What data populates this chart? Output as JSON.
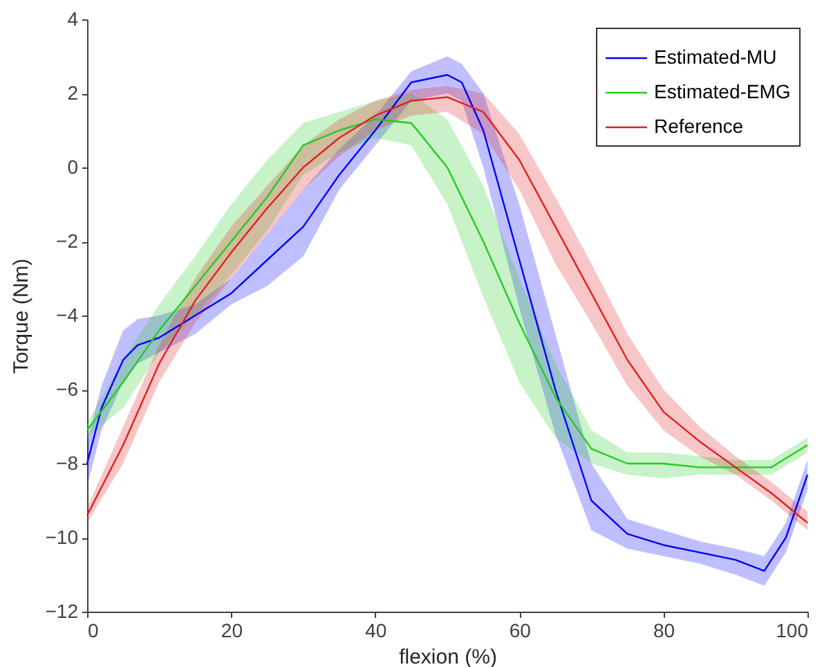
{
  "chart_data": {
    "type": "line",
    "xlabel": "flexion (%)",
    "ylabel": "Torque (Nm)",
    "xlim": [
      0,
      100
    ],
    "xticks": [
      0,
      20,
      40,
      60,
      80,
      100
    ],
    "ylim": [
      -12,
      4
    ],
    "yticks": [
      -12,
      -10,
      -8,
      -6,
      -4,
      -2,
      0,
      2,
      4
    ],
    "grid": false,
    "legend": "top right",
    "line_style": "solid",
    "series": [
      {
        "name": "Estimated-MU",
        "color": "#0000ff",
        "x": [
          0,
          2,
          5,
          7,
          10,
          15,
          20,
          25,
          30,
          35,
          40,
          45,
          50,
          52,
          55,
          60,
          65,
          70,
          75,
          80,
          85,
          90,
          94,
          97,
          100
        ],
        "values": [
          -8.0,
          -6.5,
          -5.2,
          -4.8,
          -4.6,
          -4.0,
          -3.4,
          -2.5,
          -1.6,
          -0.2,
          1.0,
          2.3,
          2.5,
          2.3,
          1.0,
          -2.5,
          -6.0,
          -9.0,
          -9.9,
          -10.2,
          -10.4,
          -10.6,
          -10.9,
          -10.0,
          -8.3
        ],
        "lower": [
          -8.6,
          -7.1,
          -5.8,
          -5.3,
          -5.0,
          -4.5,
          -3.7,
          -3.2,
          -2.4,
          -0.6,
          0.6,
          1.8,
          2.0,
          1.8,
          0.0,
          -3.8,
          -7.2,
          -9.8,
          -10.3,
          -10.5,
          -10.7,
          -11.0,
          -11.3,
          -10.4,
          -8.7
        ],
        "upper": [
          -7.4,
          -5.9,
          -4.4,
          -4.1,
          -4.0,
          -3.7,
          -3.0,
          -1.8,
          -0.6,
          0.5,
          1.4,
          2.6,
          3.0,
          2.8,
          2.0,
          -1.0,
          -4.5,
          -8.0,
          -9.5,
          -9.8,
          -10.1,
          -10.3,
          -10.5,
          -9.6,
          -7.9
        ]
      },
      {
        "name": "Estimated-EMG",
        "color": "#22cc22",
        "x": [
          0,
          5,
          10,
          15,
          20,
          25,
          30,
          35,
          40,
          45,
          50,
          55,
          60,
          65,
          70,
          75,
          80,
          85,
          90,
          95,
          100
        ],
        "values": [
          -7.1,
          -5.8,
          -4.4,
          -3.2,
          -2.0,
          -0.8,
          0.6,
          1.0,
          1.3,
          1.2,
          0.0,
          -2.0,
          -4.2,
          -6.2,
          -7.6,
          -8.0,
          -8.0,
          -8.1,
          -8.1,
          -8.1,
          -7.5
        ],
        "lower": [
          -7.3,
          -6.5,
          -5.0,
          -4.0,
          -2.9,
          -1.7,
          -0.2,
          0.4,
          0.8,
          0.6,
          -1.0,
          -3.5,
          -5.8,
          -7.3,
          -8.0,
          -8.3,
          -8.4,
          -8.3,
          -8.3,
          -8.3,
          -7.7
        ],
        "upper": [
          -6.9,
          -5.2,
          -3.7,
          -2.4,
          -1.0,
          0.2,
          1.2,
          1.5,
          1.8,
          2.0,
          1.3,
          -0.5,
          -3.0,
          -5.3,
          -7.1,
          -7.7,
          -7.7,
          -7.8,
          -7.9,
          -7.9,
          -7.3
        ]
      },
      {
        "name": "Reference",
        "color": "#e02020",
        "x": [
          0,
          5,
          10,
          15,
          20,
          25,
          30,
          35,
          40,
          45,
          50,
          55,
          60,
          65,
          70,
          75,
          80,
          85,
          90,
          95,
          100
        ],
        "values": [
          -9.4,
          -7.5,
          -5.3,
          -3.6,
          -2.3,
          -1.1,
          0.0,
          0.8,
          1.4,
          1.8,
          1.9,
          1.5,
          0.2,
          -1.6,
          -3.4,
          -5.2,
          -6.6,
          -7.4,
          -8.1,
          -8.8,
          -9.6
        ],
        "lower": [
          -9.6,
          -8.0,
          -5.8,
          -4.2,
          -3.0,
          -1.8,
          -0.6,
          0.3,
          1.0,
          1.4,
          1.5,
          0.9,
          -0.6,
          -2.6,
          -4.2,
          -5.9,
          -7.1,
          -7.8,
          -8.3,
          -9.0,
          -9.8
        ],
        "upper": [
          -9.2,
          -7.0,
          -4.8,
          -3.0,
          -1.6,
          -0.5,
          0.6,
          1.3,
          1.8,
          2.1,
          2.2,
          2.0,
          0.9,
          -0.8,
          -2.6,
          -4.5,
          -6.0,
          -7.0,
          -7.8,
          -8.5,
          -9.3
        ]
      }
    ]
  }
}
